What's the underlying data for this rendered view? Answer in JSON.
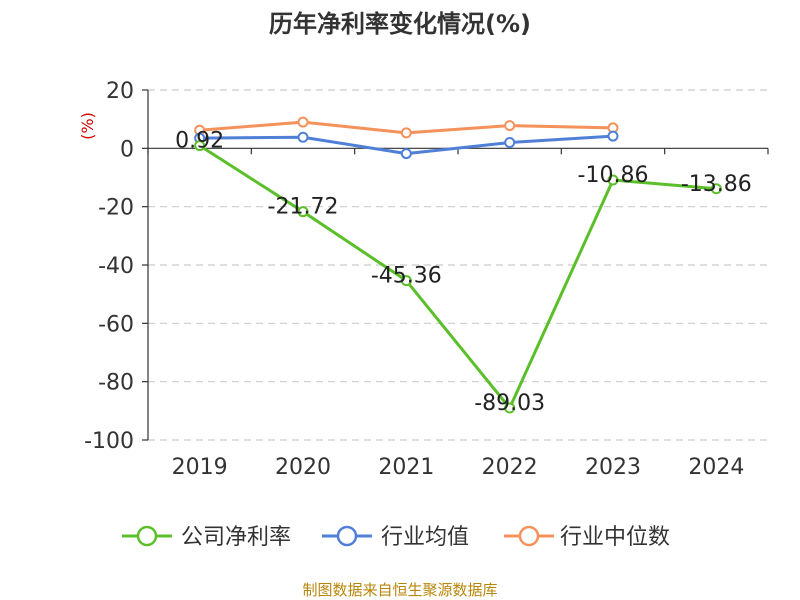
{
  "chart_data": {
    "type": "line",
    "title": "历年净利率变化情况(%)",
    "ylabel": "(%)",
    "categories": [
      "2019",
      "2020",
      "2021",
      "2022",
      "2023",
      "2024"
    ],
    "ylim": [
      -100,
      20
    ],
    "yticks": [
      20,
      0,
      -20,
      -40,
      -60,
      -80,
      -100
    ],
    "grid": true,
    "legend_position": "bottom",
    "series": [
      {
        "name": "公司净利率",
        "color": "#5bbf2a",
        "values": [
          0.92,
          -21.72,
          -45.36,
          -89.03,
          -10.86,
          -13.86
        ],
        "labels": [
          "0.92",
          "-21.72",
          "-45.36",
          "-89.03",
          "-10.86",
          "-13.86"
        ]
      },
      {
        "name": "行业均值",
        "color": "#4f7fd6",
        "values": [
          3.5,
          3.8,
          -1.8,
          2.0,
          4.2,
          null
        ]
      },
      {
        "name": "行业中位数",
        "color": "#f5915a",
        "values": [
          6.2,
          9.0,
          5.3,
          7.8,
          7.0,
          null
        ]
      }
    ]
  },
  "source": "制图数据来自恒生聚源数据库"
}
